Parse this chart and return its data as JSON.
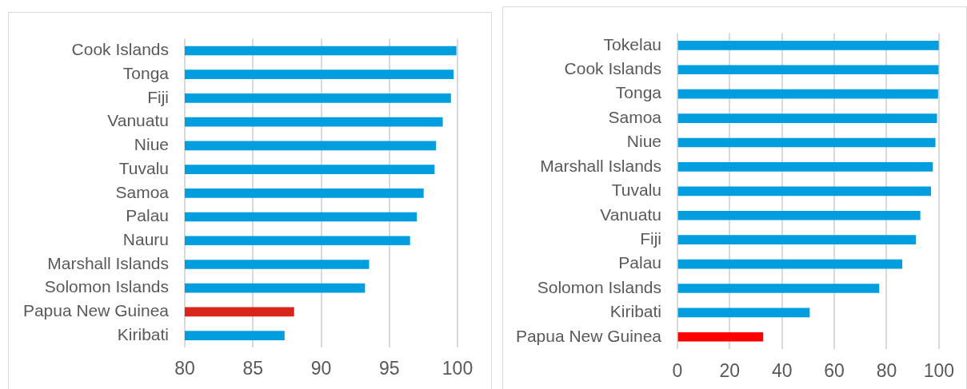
{
  "chart_data": [
    {
      "type": "bar",
      "orientation": "horizontal",
      "categories": [
        "Cook Islands",
        "Tonga",
        "Fiji",
        "Vanuatu",
        "Niue",
        "Tuvalu",
        "Samoa",
        "Palau",
        "Nauru",
        "Marshall Islands",
        "Solomon Islands",
        "Papua New Guinea",
        "Kiribati"
      ],
      "values": [
        99.9,
        99.7,
        99.5,
        98.9,
        98.4,
        98.3,
        97.5,
        97.0,
        96.5,
        93.5,
        93.2,
        88.0,
        87.3
      ],
      "colors": [
        "#009ddf",
        "#009ddf",
        "#009ddf",
        "#009ddf",
        "#009ddf",
        "#009ddf",
        "#009ddf",
        "#009ddf",
        "#009ddf",
        "#009ddf",
        "#009ddf",
        "#d9261c",
        "#009ddf"
      ],
      "xlim": [
        80,
        100
      ],
      "xticks": [
        80,
        85,
        90,
        95,
        100
      ],
      "grid": "x"
    },
    {
      "type": "bar",
      "orientation": "horizontal",
      "categories": [
        "Tokelau",
        "Cook Islands",
        "Tonga",
        "Samoa",
        "Niue",
        "Marshall Islands",
        "Tuvalu",
        "Vanuatu",
        "Fiji",
        "Palau",
        "Solomon Islands",
        "Kiribati",
        "Papua New Guinea"
      ],
      "values": [
        99.9,
        99.8,
        99.6,
        99.2,
        98.6,
        97.6,
        96.9,
        92.8,
        91.1,
        85.9,
        77.1,
        50.5,
        32.7
      ],
      "colors": [
        "#009ddf",
        "#009ddf",
        "#009ddf",
        "#009ddf",
        "#009ddf",
        "#009ddf",
        "#009ddf",
        "#009ddf",
        "#009ddf",
        "#009ddf",
        "#009ddf",
        "#009ddf",
        "#ff0000"
      ],
      "xlim": [
        0,
        100
      ],
      "xticks": [
        0,
        20,
        40,
        60,
        80,
        100
      ],
      "grid": "x"
    }
  ]
}
